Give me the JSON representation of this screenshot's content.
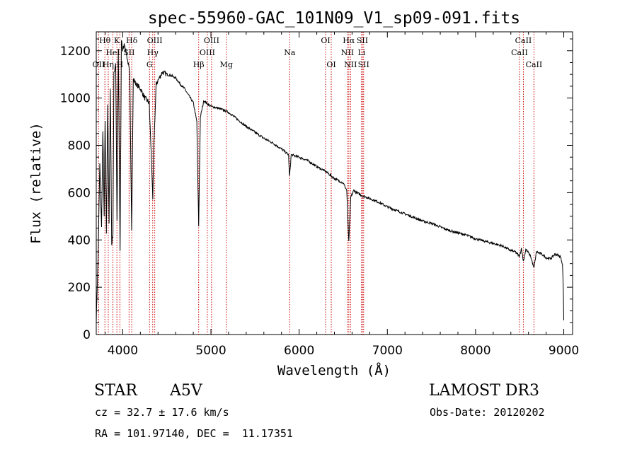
{
  "chart_data": {
    "type": "line",
    "title": "spec-55960-GAC_101N09_V1_sp09-091.fits",
    "xlabel": "Wavelength (Å)",
    "ylabel": "Flux (relative)",
    "xlim": [
      3700,
      9100
    ],
    "ylim": [
      0,
      1280
    ],
    "xticks": [
      4000,
      5000,
      6000,
      7000,
      8000,
      9000
    ],
    "yticks": [
      0,
      200,
      400,
      600,
      800,
      1000,
      1200
    ],
    "grid": false,
    "series": [
      {
        "name": "spectrum",
        "x": [
          3700,
          3720,
          3740,
          3760,
          3775,
          3790,
          3800,
          3815,
          3830,
          3845,
          3860,
          3875,
          3889,
          3900,
          3920,
          3935,
          3950,
          3970,
          3985,
          4000,
          4020,
          4040,
          4060,
          4080,
          4101,
          4120,
          4150,
          4200,
          4250,
          4300,
          4330,
          4341,
          4352,
          4380,
          4450,
          4500,
          4550,
          4600,
          4650,
          4700,
          4750,
          4800,
          4840,
          4861,
          4880,
          4920,
          4960,
          5000,
          5100,
          5200,
          5300,
          5400,
          5500,
          5600,
          5700,
          5800,
          5880,
          5890,
          5896,
          5910,
          6000,
          6100,
          6200,
          6300,
          6400,
          6500,
          6540,
          6563,
          6585,
          6620,
          6650,
          6700,
          6800,
          6900,
          7000,
          7100,
          7200,
          7300,
          7400,
          7500,
          7600,
          7700,
          7800,
          7900,
          8000,
          8100,
          8200,
          8300,
          8400,
          8450,
          8498,
          8520,
          8542,
          8570,
          8600,
          8625,
          8662,
          8690,
          8750,
          8800,
          8850,
          8900,
          8960,
          8985,
          8995,
          9000
        ],
        "values": [
          60,
          320,
          720,
          450,
          860,
          500,
          900,
          430,
          980,
          460,
          1050,
          380,
          430,
          1100,
          1150,
          480,
          1200,
          350,
          1250,
          1200,
          1230,
          1190,
          1150,
          1100,
          450,
          1080,
          1060,
          1040,
          1000,
          980,
          700,
          560,
          800,
          1060,
          1110,
          1100,
          1095,
          1085,
          1060,
          1040,
          1010,
          980,
          900,
          460,
          920,
          990,
          975,
          965,
          955,
          940,
          910,
          880,
          855,
          830,
          810,
          785,
          760,
          670,
          690,
          760,
          750,
          735,
          710,
          690,
          660,
          640,
          610,
          390,
          580,
          610,
          600,
          590,
          575,
          560,
          540,
          525,
          510,
          495,
          480,
          470,
          455,
          440,
          430,
          420,
          405,
          395,
          385,
          375,
          355,
          350,
          330,
          365,
          310,
          360,
          345,
          330,
          280,
          350,
          340,
          325,
          320,
          340,
          330,
          300,
          190,
          60
        ]
      }
    ],
    "lines": [
      {
        "label": "Hθ",
        "wl": 3798,
        "row": 1
      },
      {
        "label": "OII",
        "wl": 3727,
        "row": 3
      },
      {
        "label": "Hη",
        "wl": 3836,
        "row": 3
      },
      {
        "label": "HeI",
        "wl": 3889,
        "row": 2
      },
      {
        "label": "K",
        "wl": 3934,
        "row": 1
      },
      {
        "label": "H",
        "wl": 3968,
        "row": 3
      },
      {
        "label": "SII",
        "wl": 4072,
        "row": 2
      },
      {
        "label": "Hδ",
        "wl": 4102,
        "row": 1
      },
      {
        "label": "G",
        "wl": 4304,
        "row": 3
      },
      {
        "label": "Hγ",
        "wl": 4340,
        "row": 2
      },
      {
        "label": "OIII",
        "wl": 4363,
        "row": 1
      },
      {
        "label": "Hβ",
        "wl": 4861,
        "row": 3
      },
      {
        "label": "OIII",
        "wl": 4959,
        "row": 2
      },
      {
        "label": "OIII",
        "wl": 5007,
        "row": 1
      },
      {
        "label": "Mg",
        "wl": 5175,
        "row": 3
      },
      {
        "label": "Na",
        "wl": 5893,
        "row": 2
      },
      {
        "label": "OI",
        "wl": 6300,
        "row": 1
      },
      {
        "label": "OI",
        "wl": 6364,
        "row": 3
      },
      {
        "label": "NII",
        "wl": 6548,
        "row": 2
      },
      {
        "label": "Hα",
        "wl": 6563,
        "row": 1
      },
      {
        "label": "NII",
        "wl": 6583,
        "row": 3
      },
      {
        "label": "Li",
        "wl": 6708,
        "row": 2
      },
      {
        "label": "SII",
        "wl": 6717,
        "row": 1
      },
      {
        "label": "SII",
        "wl": 6731,
        "row": 3
      },
      {
        "label": "CaII",
        "wl": 8498,
        "row": 2
      },
      {
        "label": "CaII",
        "wl": 8542,
        "row": 1
      },
      {
        "label": "CaII",
        "wl": 8662,
        "row": 3
      }
    ]
  },
  "info": {
    "object_class": "STAR",
    "subclass": "A5V",
    "survey": "LAMOST DR3",
    "cz": "cz = 32.7 ± 17.6 km/s",
    "obs_date": "Obs-Date: 20120202",
    "coords": "RA = 101.97140, DEC =  11.17351"
  },
  "colors": {
    "spectrum": "#000000",
    "line_marker": "#cc0000",
    "axis": "#000000"
  }
}
